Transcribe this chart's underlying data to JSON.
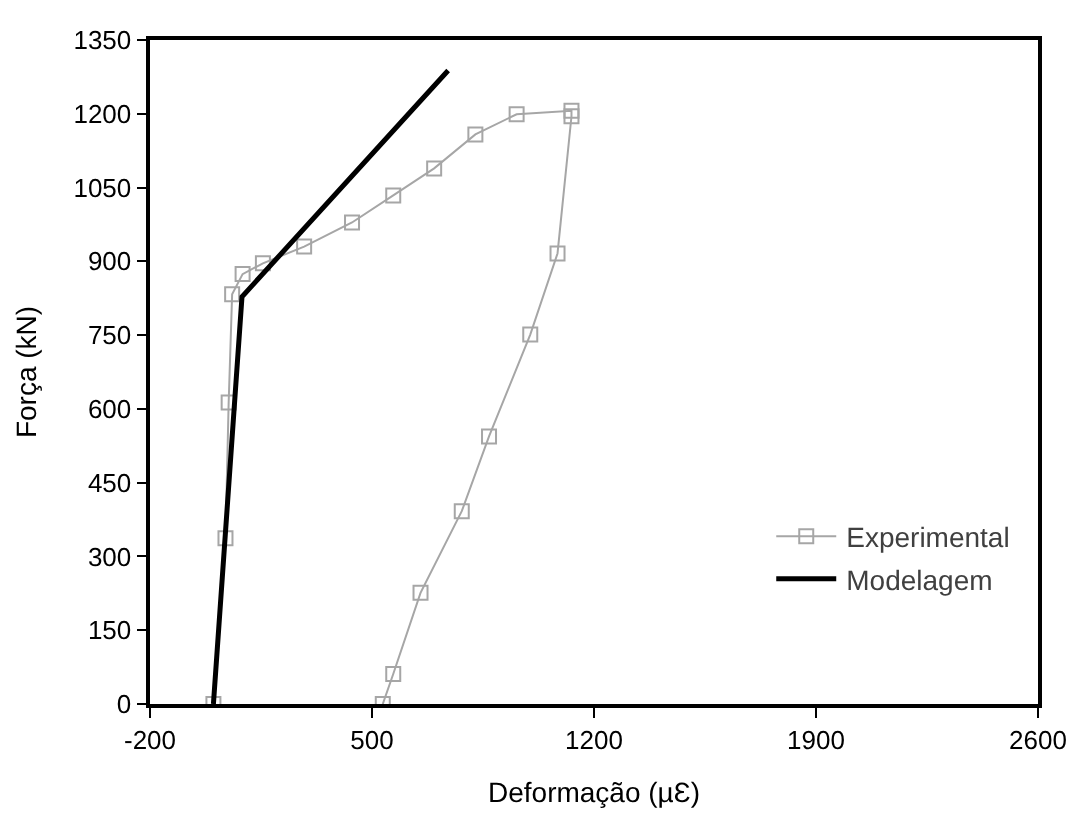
{
  "chart_data": {
    "type": "line",
    "xlabel": "Deformação (µƐ)",
    "ylabel": "Força (kN)",
    "xlim": [
      -200,
      2600
    ],
    "xticks": [
      -200,
      500,
      1200,
      1900,
      2600
    ],
    "ylim": [
      0,
      1350
    ],
    "yticks": [
      0,
      150,
      300,
      450,
      600,
      750,
      900,
      1050,
      1200,
      1350
    ],
    "legend": "bottom right",
    "series": [
      {
        "name": "Experimental",
        "color": "#a6a6a6",
        "marker": "square",
        "x": [
          0,
          38,
          48,
          59,
          92,
          156,
          286,
          437,
          567,
          696,
          826,
          956,
          1129,
          1129,
          1085,
          999,
          869,
          783,
          653,
          567,
          534
        ],
        "values": [
          0,
          337,
          613,
          833,
          874,
          896,
          930,
          979,
          1034,
          1089,
          1158,
          1199,
          1206,
          1195,
          916,
          751,
          544,
          392,
          226,
          61,
          0
        ]
      },
      {
        "name": "Modelagem",
        "color": "#000000",
        "marker": "none",
        "x": [
          0,
          90,
          740
        ],
        "values": [
          0,
          828,
          1288
        ]
      }
    ]
  }
}
